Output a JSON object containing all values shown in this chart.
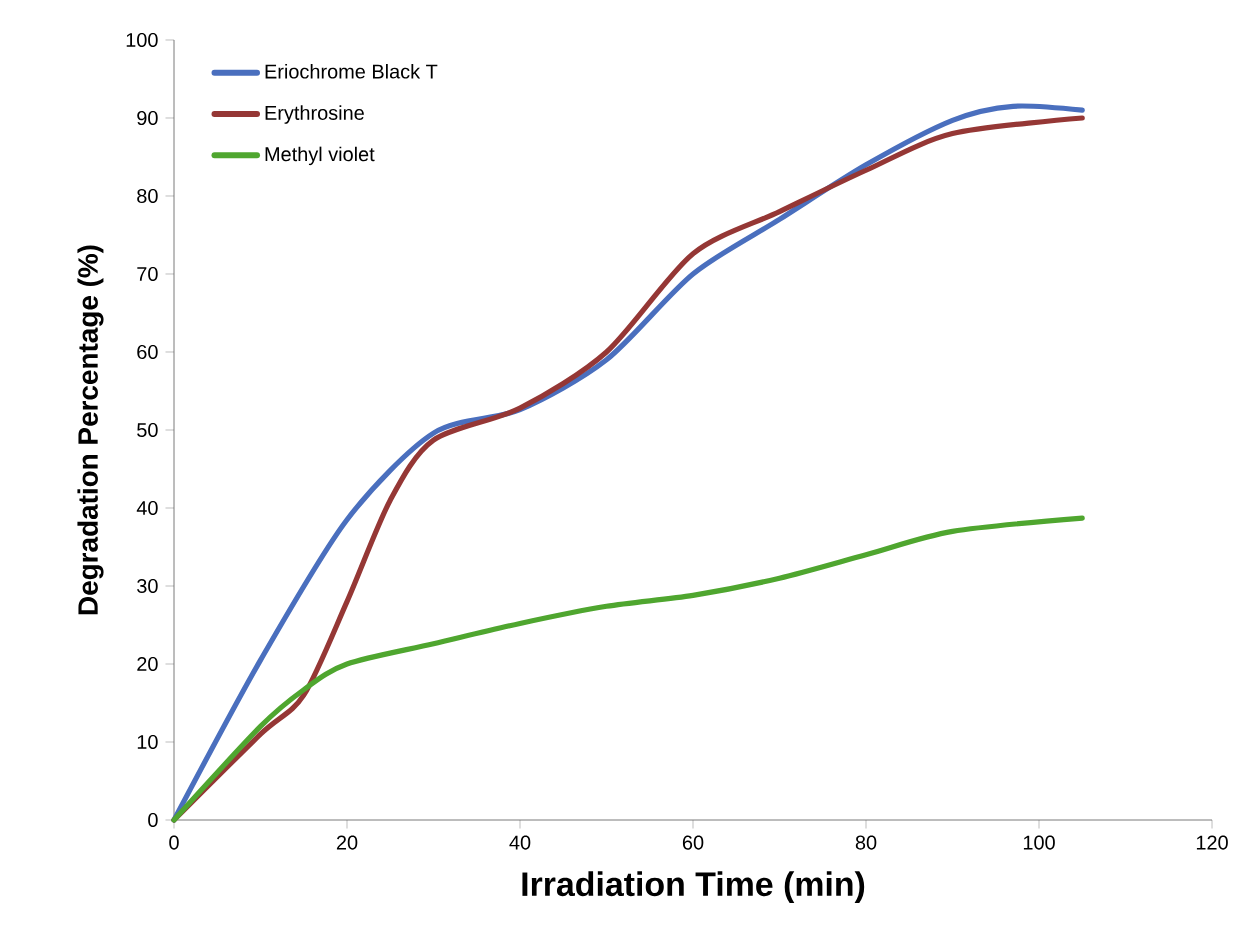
{
  "chart_data": {
    "type": "line",
    "xlabel": "Irradiation Time (min)",
    "ylabel": "Degradation Percentage (%)",
    "xlim": [
      0,
      120
    ],
    "xticks": [
      0,
      20,
      40,
      60,
      80,
      100,
      120
    ],
    "ylim": [
      0,
      100
    ],
    "yticks": [
      0,
      10,
      20,
      30,
      40,
      50,
      60,
      70,
      80,
      90,
      100
    ],
    "grid": false,
    "legend": "top left",
    "marker": "none",
    "line_style": "solid",
    "series": [
      {
        "name": "Eriochrome Black T",
        "color": "#4a6fbe",
        "x": [
          0,
          10,
          20,
          30,
          40,
          50,
          60,
          70,
          80,
          90,
          97,
          105
        ],
        "values": [
          0,
          20.5,
          38.5,
          49.6,
          52.6,
          59,
          70,
          77,
          84,
          89.7,
          91.5,
          91
        ]
      },
      {
        "name": "Erythrosine",
        "color": "#953735",
        "x": [
          0,
          10,
          15,
          20,
          25,
          30,
          40,
          50,
          60,
          70,
          80,
          90,
          105
        ],
        "values": [
          0,
          11,
          16,
          28,
          41,
          48.7,
          52.8,
          60,
          72.6,
          78,
          83.3,
          88,
          90
        ]
      },
      {
        "name": "Methyl violet",
        "color": "#4fa62f",
        "x": [
          0,
          10,
          15,
          20,
          30,
          40,
          50,
          60,
          70,
          80,
          90,
          105
        ],
        "values": [
          0,
          12,
          16.7,
          20,
          22.6,
          25.2,
          27.4,
          28.8,
          31,
          34,
          37,
          38.7
        ]
      }
    ]
  }
}
